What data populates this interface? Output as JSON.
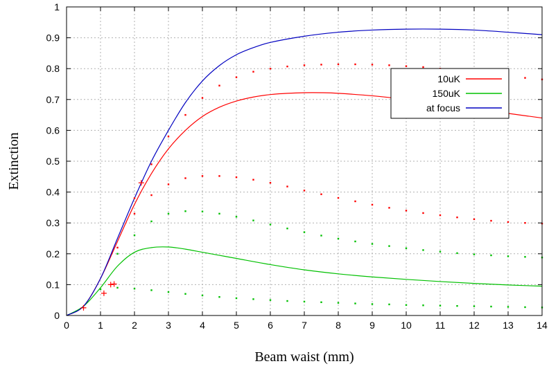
{
  "chart_data": {
    "type": "line",
    "xlabel": "Beam waist (mm)",
    "ylabel": "Extinction",
    "xlim": [
      0,
      14
    ],
    "ylim": [
      0,
      1
    ],
    "x_ticks": [
      "0",
      "1",
      "2",
      "3",
      "4",
      "5",
      "6",
      "7",
      "8",
      "9",
      "10",
      "11",
      "12",
      "13",
      "14"
    ],
    "y_ticks": [
      "0",
      "0.1",
      "0.2",
      "0.3",
      "0.4",
      "0.5",
      "0.6",
      "0.7",
      "0.8",
      "0.9",
      "1"
    ],
    "grid": true,
    "legend": "top-right",
    "series": [
      {
        "name": "10uK",
        "style": "line",
        "color": "#ff0000",
        "x": [
          0,
          0.5,
          1.0,
          1.5,
          2.0,
          2.5,
          3.0,
          3.5,
          4.0,
          4.5,
          5.0,
          5.5,
          6.0,
          6.5,
          7.0,
          7.5,
          8.0,
          9.0,
          10.0,
          11.0,
          12.0,
          13.0,
          14.0
        ],
        "y": [
          0,
          0.03,
          0.12,
          0.24,
          0.36,
          0.46,
          0.54,
          0.6,
          0.645,
          0.675,
          0.695,
          0.708,
          0.716,
          0.72,
          0.722,
          0.722,
          0.72,
          0.712,
          0.7,
          0.685,
          0.67,
          0.655,
          0.64
        ]
      },
      {
        "name": "150uK",
        "style": "line",
        "color": "#00c000",
        "x": [
          0,
          0.5,
          1.0,
          1.5,
          2.0,
          2.5,
          3.0,
          3.5,
          4.0,
          4.5,
          5.0,
          6.0,
          7.0,
          8.0,
          9.0,
          10.0,
          11.0,
          12.0,
          13.0,
          14.0
        ],
        "y": [
          0,
          0.03,
          0.09,
          0.16,
          0.205,
          0.22,
          0.222,
          0.215,
          0.205,
          0.195,
          0.185,
          0.165,
          0.148,
          0.135,
          0.125,
          0.117,
          0.11,
          0.104,
          0.099,
          0.095
        ]
      },
      {
        "name": "at focus",
        "style": "line",
        "color": "#0000c0",
        "x": [
          0,
          0.5,
          1.0,
          1.5,
          2.0,
          2.5,
          3.0,
          3.5,
          4.0,
          4.5,
          5.0,
          5.5,
          6.0,
          7.0,
          8.0,
          9.0,
          10.0,
          11.0,
          12.0,
          13.0,
          14.0
        ],
        "y": [
          0,
          0.03,
          0.12,
          0.25,
          0.38,
          0.5,
          0.6,
          0.69,
          0.76,
          0.81,
          0.845,
          0.868,
          0.885,
          0.905,
          0.918,
          0.925,
          0.928,
          0.928,
          0.925,
          0.918,
          0.91
        ]
      },
      {
        "style": "dots",
        "color": "#ff0000",
        "x": [
          2.0,
          2.5,
          3.0,
          3.5,
          4.0,
          4.5,
          5.0,
          5.5,
          6.0,
          6.5,
          7.0,
          7.5,
          8.0,
          8.5,
          9.0,
          9.5,
          10.0,
          10.5,
          11.0,
          11.5,
          12.0,
          12.5,
          13.0,
          13.5,
          14.0
        ],
        "y": [
          0.38,
          0.49,
          0.58,
          0.65,
          0.705,
          0.745,
          0.772,
          0.79,
          0.8,
          0.807,
          0.811,
          0.813,
          0.814,
          0.814,
          0.813,
          0.811,
          0.808,
          0.805,
          0.8,
          0.795,
          0.79,
          0.783,
          0.777,
          0.77,
          0.765
        ]
      },
      {
        "style": "dots",
        "color": "#ff0000",
        "x": [
          1.5,
          2.0,
          2.5,
          3.0,
          3.5,
          4.0,
          4.5,
          5.0,
          5.5,
          6.0,
          6.5,
          7.0,
          7.5,
          8.0,
          8.5,
          9.0,
          9.5,
          10.0,
          10.5,
          11.0,
          11.5,
          12.0,
          12.5,
          13.0,
          13.5,
          14.0
        ],
        "y": [
          0.22,
          0.33,
          0.39,
          0.425,
          0.445,
          0.452,
          0.452,
          0.448,
          0.44,
          0.43,
          0.418,
          0.405,
          0.393,
          0.381,
          0.37,
          0.359,
          0.349,
          0.34,
          0.332,
          0.325,
          0.318,
          0.312,
          0.307,
          0.303,
          0.3,
          0.298
        ]
      },
      {
        "style": "dots",
        "color": "#00c000",
        "x": [
          1.5,
          2.0,
          2.5,
          3.0,
          3.5,
          4.0,
          4.5,
          5.0,
          5.5,
          6.0,
          6.5,
          7.0,
          7.5,
          8.0,
          8.5,
          9.0,
          9.5,
          10.0,
          10.5,
          11.0,
          11.5,
          12.0,
          12.5,
          13.0,
          13.5,
          14.0
        ],
        "y": [
          0.2,
          0.26,
          0.305,
          0.33,
          0.338,
          0.337,
          0.33,
          0.32,
          0.308,
          0.295,
          0.282,
          0.27,
          0.259,
          0.249,
          0.24,
          0.232,
          0.225,
          0.218,
          0.212,
          0.207,
          0.202,
          0.198,
          0.195,
          0.192,
          0.19,
          0.188
        ]
      },
      {
        "style": "dots",
        "color": "#00c000",
        "x": [
          1.0,
          1.5,
          2.0,
          2.5,
          3.0,
          3.5,
          4.0,
          4.5,
          5.0,
          5.5,
          6.0,
          6.5,
          7.0,
          7.5,
          8.0,
          8.5,
          9.0,
          9.5,
          10.0,
          10.5,
          11.0,
          11.5,
          12.0,
          12.5,
          13.0,
          13.5,
          14.0
        ],
        "y": [
          0.085,
          0.09,
          0.087,
          0.082,
          0.076,
          0.07,
          0.065,
          0.06,
          0.056,
          0.053,
          0.05,
          0.047,
          0.045,
          0.043,
          0.041,
          0.039,
          0.037,
          0.036,
          0.034,
          0.033,
          0.032,
          0.031,
          0.03,
          0.029,
          0.028,
          0.027,
          0.026
        ]
      },
      {
        "style": "plus",
        "color": "#ff0000",
        "x": [
          0.5,
          1.1,
          1.3,
          1.4,
          2.2
        ],
        "y": [
          0.025,
          0.072,
          0.1,
          0.102,
          0.43
        ]
      }
    ]
  }
}
